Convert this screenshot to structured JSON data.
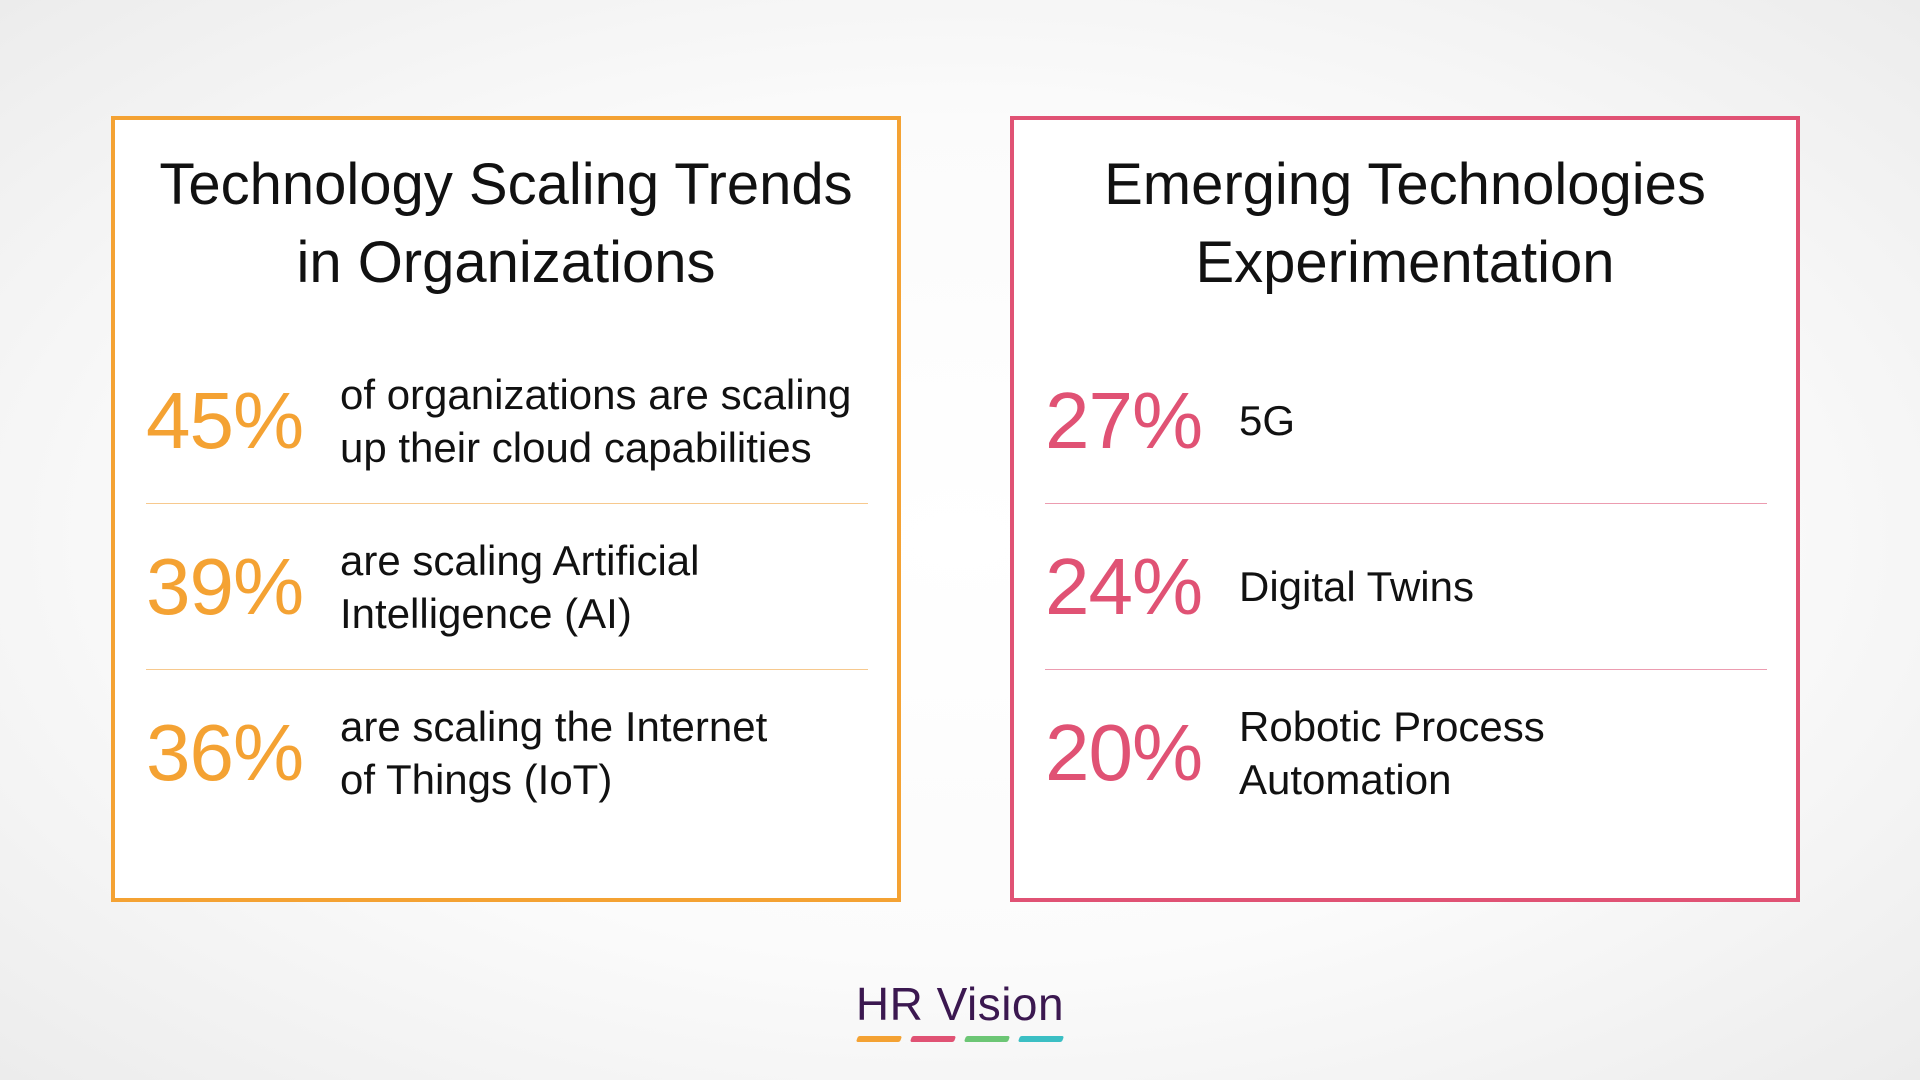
{
  "panels": {
    "left": {
      "title_lines": [
        "Technology Scaling Trends",
        "in Organizations"
      ],
      "accent_color": "#f4a233",
      "rows": [
        {
          "pct": "45%",
          "lines": [
            "of organizations are scaling",
            "up their cloud capabilities"
          ]
        },
        {
          "pct": "39%",
          "lines": [
            "are scaling Artificial",
            "Intelligence (AI)"
          ]
        },
        {
          "pct": "36%",
          "lines": [
            "are scaling the Internet",
            "of Things (IoT)"
          ]
        }
      ]
    },
    "right": {
      "title_lines": [
        "Emerging Technologies",
        "Experimentation"
      ],
      "accent_color": "#e05274",
      "rows": [
        {
          "pct": "27%",
          "lines": [
            "5G"
          ]
        },
        {
          "pct": "24%",
          "lines": [
            "Digital Twins"
          ]
        },
        {
          "pct": "20%",
          "lines": [
            "Robotic Process",
            "Automation"
          ]
        }
      ]
    }
  },
  "logo": {
    "text": "HR Vision",
    "text_color": "#3b1850",
    "bar_colors": [
      "#f4a233",
      "#e05274",
      "#6cc675",
      "#3bbfc4"
    ]
  }
}
